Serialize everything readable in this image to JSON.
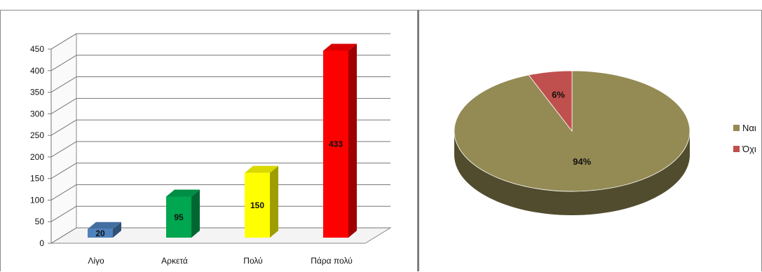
{
  "chart_data": [
    {
      "type": "bar",
      "categories": [
        "Λίγο",
        "Αρκετά",
        "Πολύ",
        "Πάρα πολύ"
      ],
      "values": [
        20,
        95,
        150,
        433
      ],
      "colors": [
        "#4f81bd",
        "#00a650",
        "#ffff00",
        "#ff0000"
      ],
      "yticks": [
        0,
        50,
        100,
        150,
        200,
        250,
        300,
        350,
        400,
        450
      ],
      "ylim": [
        0,
        450
      ],
      "grid": true,
      "style": "3d-column",
      "data_labels": true
    },
    {
      "type": "pie",
      "style": "3d-pie",
      "labels": [
        "Ναι",
        "Όχι"
      ],
      "values": [
        94,
        6
      ],
      "display_labels": [
        "94%",
        "6%"
      ],
      "colors": [
        "#948a54",
        "#c0504d"
      ],
      "legend": "right"
    }
  ]
}
